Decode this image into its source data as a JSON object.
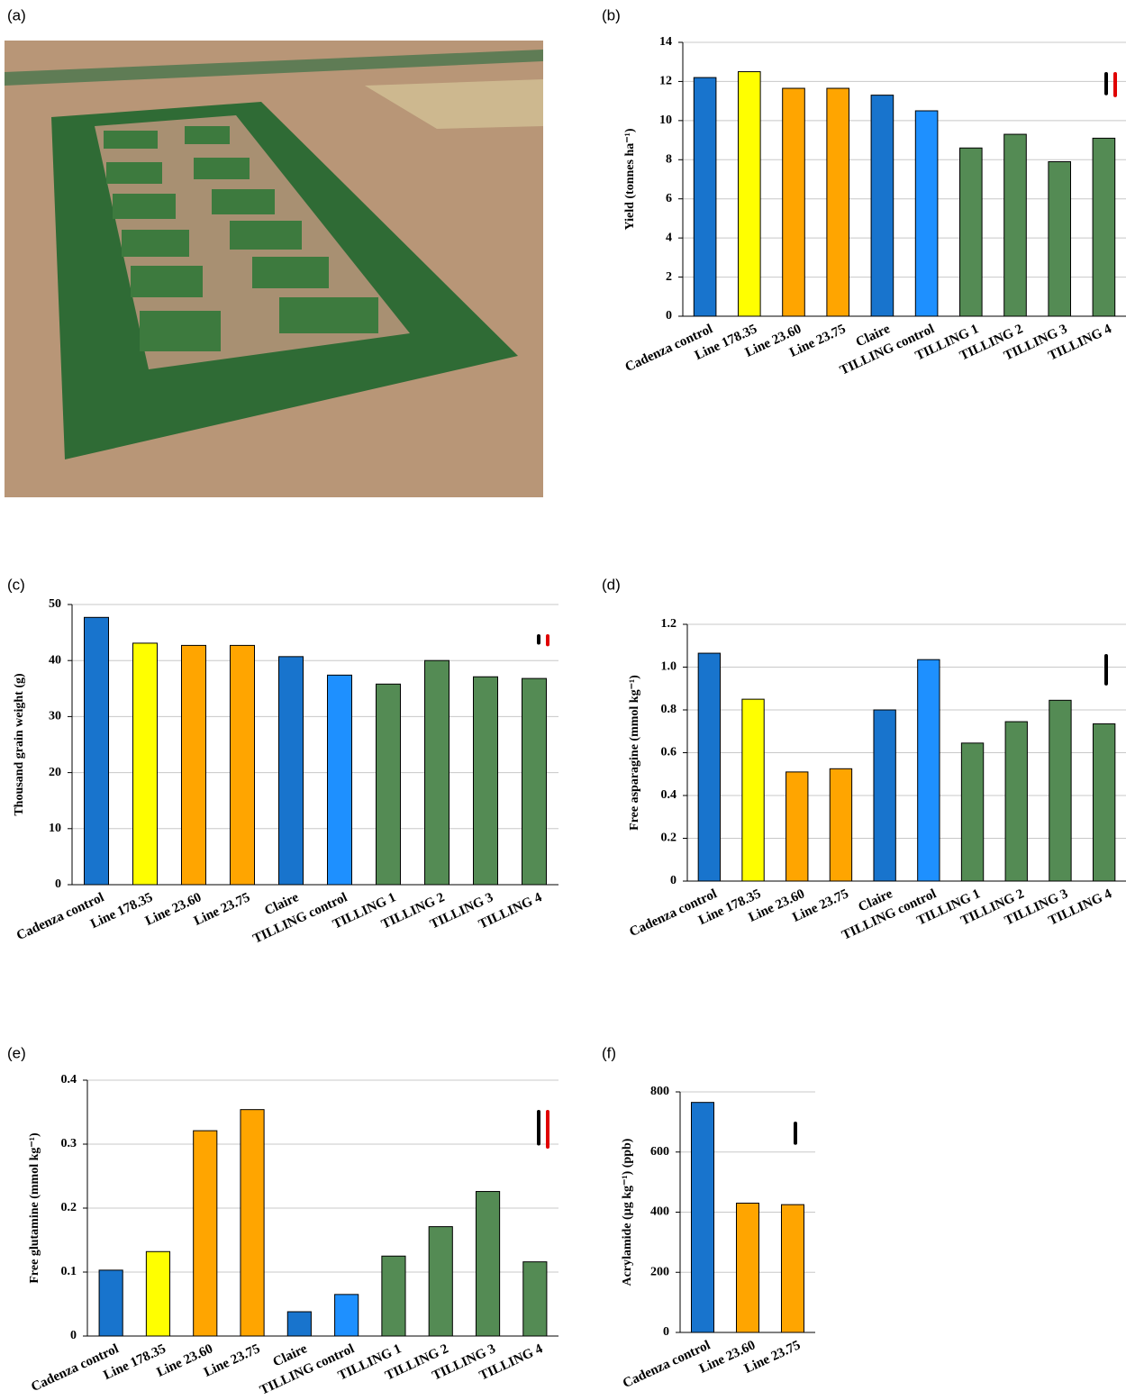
{
  "chart_data": [
    {
      "type": "image",
      "label": "(a)"
    },
    {
      "type": "bar",
      "label": "(b)",
      "ylabel": "Yield (tonnes ha⁻¹)",
      "categories": [
        "Cadenza control",
        "Line 178.35",
        "Line 23.60",
        "Line 23.75",
        "Claire",
        "TILLING control",
        "TILLING 1",
        "TILLING 2",
        "TILLING 3",
        "TILLING 4"
      ],
      "values": [
        12.2,
        12.5,
        11.65,
        11.65,
        11.3,
        10.5,
        8.6,
        9.3,
        7.9,
        9.1
      ],
      "colors": [
        "#1874cd",
        "#ffff00",
        "#ffa500",
        "#ffa500",
        "#1874cd",
        "#1e90ff",
        "#548b54",
        "#548b54",
        "#548b54",
        "#548b54"
      ],
      "ylim": [
        0,
        14
      ],
      "yticks": [
        0,
        2,
        4,
        6,
        8,
        10,
        12,
        14
      ],
      "grid": true,
      "lsd_bars": [
        {
          "color": "#000000",
          "value": 1.0
        },
        {
          "color": "#e00000",
          "value": 1.1
        }
      ]
    },
    {
      "type": "bar",
      "label": "(c)",
      "ylabel": "Thousand grain weight (g)",
      "categories": [
        "Cadenza control",
        "Line 178.35",
        "Line 23.60",
        "Line 23.75",
        "Claire",
        "TILLING control",
        "TILLING 1",
        "TILLING 2",
        "TILLING 3",
        "TILLING 4"
      ],
      "values": [
        47.7,
        43.1,
        42.7,
        42.7,
        40.7,
        37.4,
        35.8,
        40.0,
        37.1,
        36.8
      ],
      "colors": [
        "#1874cd",
        "#ffff00",
        "#ffa500",
        "#ffa500",
        "#1874cd",
        "#1e90ff",
        "#548b54",
        "#548b54",
        "#548b54",
        "#548b54"
      ],
      "ylim": [
        0,
        50
      ],
      "yticks": [
        0,
        10,
        20,
        30,
        40,
        50
      ],
      "grid": true,
      "lsd_bars": [
        {
          "color": "#000000",
          "value": 1.2
        },
        {
          "color": "#e00000",
          "value": 1.5
        }
      ]
    },
    {
      "type": "bar",
      "label": "(d)",
      "ylabel": "Free asparagine (mmol kg⁻¹)",
      "categories": [
        "Cadenza control",
        "Line 178.35",
        "Line 23.60",
        "Line 23.75",
        "Claire",
        "TILLING control",
        "TILLING 1",
        "TILLING 2",
        "TILLING 3",
        "TILLING 4"
      ],
      "values": [
        1.065,
        0.85,
        0.51,
        0.525,
        0.8,
        1.035,
        0.645,
        0.745,
        0.845,
        0.735
      ],
      "colors": [
        "#1874cd",
        "#ffff00",
        "#ffa500",
        "#ffa500",
        "#1874cd",
        "#1e90ff",
        "#548b54",
        "#548b54",
        "#548b54",
        "#548b54"
      ],
      "ylim": [
        0,
        1.2
      ],
      "yticks": [
        0,
        0.2,
        0.4,
        0.6,
        0.8,
        {
          "value": 1,
          "label": "1.0"
        },
        1.2
      ],
      "grid": true,
      "lsd_bars": [
        {
          "color": "#000000",
          "value": 0.13
        }
      ]
    },
    {
      "type": "bar",
      "label": "(e)",
      "ylabel": "Free glutamine (mmol kg⁻¹)",
      "categories": [
        "Cadenza control",
        "Line 178.35",
        "Line 23.60",
        "Line 23.75",
        "Claire",
        "TILLING control",
        "TILLING 1",
        "TILLING 2",
        "TILLING 3",
        "TILLING 4"
      ],
      "values": [
        0.103,
        0.132,
        0.321,
        0.354,
        0.038,
        0.065,
        0.125,
        0.171,
        0.226,
        0.116
      ],
      "colors": [
        "#1874cd",
        "#ffff00",
        "#ffa500",
        "#ffa500",
        "#1874cd",
        "#1e90ff",
        "#548b54",
        "#548b54",
        "#548b54",
        "#548b54"
      ],
      "ylim": [
        0,
        0.4
      ],
      "yticks": [
        0,
        0.1,
        0.2,
        0.3,
        0.4
      ],
      "grid": true,
      "lsd_bars": [
        {
          "color": "#000000",
          "value": 0.05
        },
        {
          "color": "#e00000",
          "value": 0.055
        }
      ]
    },
    {
      "type": "bar",
      "label": "(f)",
      "ylabel": "Acrylamide (µg kg⁻¹) (ppb)",
      "categories": [
        "Cadenza control",
        "Line 23.60",
        "Line 23.75"
      ],
      "values": [
        765,
        430,
        425
      ],
      "colors": [
        "#1874cd",
        "#ffa500",
        "#ffa500"
      ],
      "ylim": [
        0,
        800
      ],
      "yticks": [
        0,
        200,
        400,
        600,
        800
      ],
      "grid": true,
      "lsd_bars": [
        {
          "color": "#000000",
          "value": 65
        }
      ]
    }
  ]
}
